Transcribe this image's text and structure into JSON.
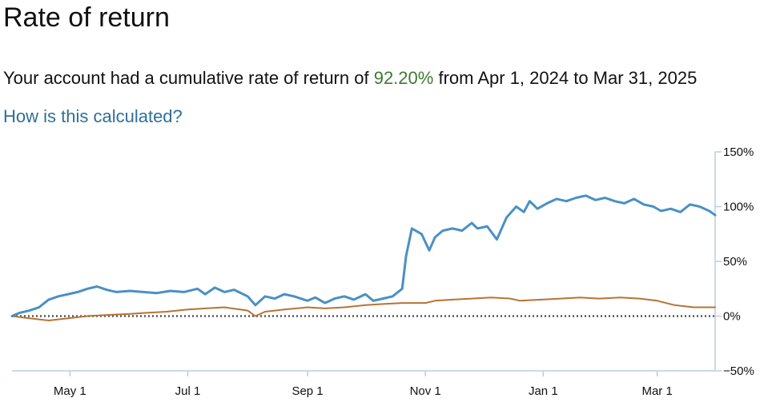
{
  "header": {
    "title": "Rate of return",
    "summary_prefix": "Your account had a cumulative rate of return of",
    "summary_rate": "92.20%",
    "summary_range": "from Apr 1, 2024 to Mar 31, 2025",
    "help_link": "How is this calculated?"
  },
  "colors": {
    "account": "#4a90c4",
    "benchmark": "#b87333",
    "rate_text": "#3d7a2e",
    "link": "#2f6f9a",
    "axis": "#b9cde0",
    "zero_line": "#555555"
  },
  "chart_data": {
    "type": "line",
    "x_range": [
      "2024-04-01",
      "2025-03-31"
    ],
    "ylim": [
      -50,
      150
    ],
    "y_ticks": [
      150,
      100,
      50,
      0,
      -50
    ],
    "y_tick_labels": [
      "150%",
      "100%",
      "50%",
      "0%",
      "−50%"
    ],
    "x_ticks": [
      "2024-05-01",
      "2024-07-01",
      "2024-09-01",
      "2024-11-01",
      "2025-01-01",
      "2025-03-01"
    ],
    "x_tick_labels": [
      "May 1",
      "Jul 1",
      "Sep 1",
      "Nov 1",
      "Jan 1",
      "Mar 1"
    ],
    "zero_line": "dotted",
    "series": [
      {
        "key": "account",
        "x": [
          "2024-04-01",
          "2024-04-05",
          "2024-04-10",
          "2024-04-15",
          "2024-04-20",
          "2024-04-25",
          "2024-04-30",
          "2024-05-05",
          "2024-05-10",
          "2024-05-15",
          "2024-05-20",
          "2024-05-25",
          "2024-06-01",
          "2024-06-08",
          "2024-06-15",
          "2024-06-22",
          "2024-06-29",
          "2024-07-06",
          "2024-07-10",
          "2024-07-15",
          "2024-07-20",
          "2024-07-25",
          "2024-08-01",
          "2024-08-05",
          "2024-08-10",
          "2024-08-15",
          "2024-08-20",
          "2024-08-25",
          "2024-09-01",
          "2024-09-05",
          "2024-09-10",
          "2024-09-15",
          "2024-09-20",
          "2024-09-25",
          "2024-10-01",
          "2024-10-05",
          "2024-10-10",
          "2024-10-15",
          "2024-10-20",
          "2024-10-22",
          "2024-10-25",
          "2024-10-30",
          "2024-11-03",
          "2024-11-06",
          "2024-11-10",
          "2024-11-15",
          "2024-11-20",
          "2024-11-25",
          "2024-11-28",
          "2024-12-03",
          "2024-12-08",
          "2024-12-13",
          "2024-12-18",
          "2024-12-22",
          "2024-12-25",
          "2024-12-29",
          "2025-01-03",
          "2025-01-08",
          "2025-01-13",
          "2025-01-18",
          "2025-01-23",
          "2025-01-28",
          "2025-02-02",
          "2025-02-07",
          "2025-02-12",
          "2025-02-17",
          "2025-02-22",
          "2025-02-27",
          "2025-03-03",
          "2025-03-08",
          "2025-03-13",
          "2025-03-18",
          "2025-03-23",
          "2025-03-28",
          "2025-03-31"
        ],
        "y": [
          0,
          3,
          5,
          8,
          15,
          18,
          20,
          22,
          25,
          27,
          24,
          22,
          23,
          22,
          21,
          23,
          22,
          25,
          20,
          26,
          22,
          24,
          18,
          10,
          18,
          16,
          20,
          18,
          14,
          17,
          12,
          16,
          18,
          15,
          20,
          14,
          16,
          18,
          25,
          55,
          80,
          75,
          60,
          72,
          78,
          80,
          78,
          85,
          80,
          82,
          70,
          90,
          100,
          95,
          105,
          98,
          103,
          107,
          105,
          108,
          110,
          106,
          108,
          105,
          103,
          107,
          102,
          100,
          96,
          98,
          95,
          102,
          100,
          96,
          92.2
        ]
      },
      {
        "key": "benchmark",
        "x": [
          "2024-04-01",
          "2024-04-10",
          "2024-04-20",
          "2024-04-30",
          "2024-05-10",
          "2024-05-20",
          "2024-06-01",
          "2024-06-10",
          "2024-06-20",
          "2024-07-01",
          "2024-07-10",
          "2024-07-20",
          "2024-08-01",
          "2024-08-05",
          "2024-08-10",
          "2024-08-20",
          "2024-09-01",
          "2024-09-10",
          "2024-09-20",
          "2024-10-01",
          "2024-10-10",
          "2024-10-20",
          "2024-11-01",
          "2024-11-06",
          "2024-11-15",
          "2024-11-25",
          "2024-12-05",
          "2024-12-15",
          "2024-12-20",
          "2024-12-31",
          "2025-01-10",
          "2025-01-20",
          "2025-01-30",
          "2025-02-10",
          "2025-02-20",
          "2025-03-01",
          "2025-03-10",
          "2025-03-20",
          "2025-03-31"
        ],
        "y": [
          0,
          -2,
          -4,
          -2,
          0,
          1,
          2,
          3,
          4,
          6,
          7,
          8,
          5,
          0,
          4,
          6,
          8,
          7,
          8,
          10,
          11,
          12,
          12,
          14,
          15,
          16,
          17,
          16,
          14,
          15,
          16,
          17,
          16,
          17,
          16,
          14,
          10,
          8,
          8
        ]
      }
    ]
  }
}
